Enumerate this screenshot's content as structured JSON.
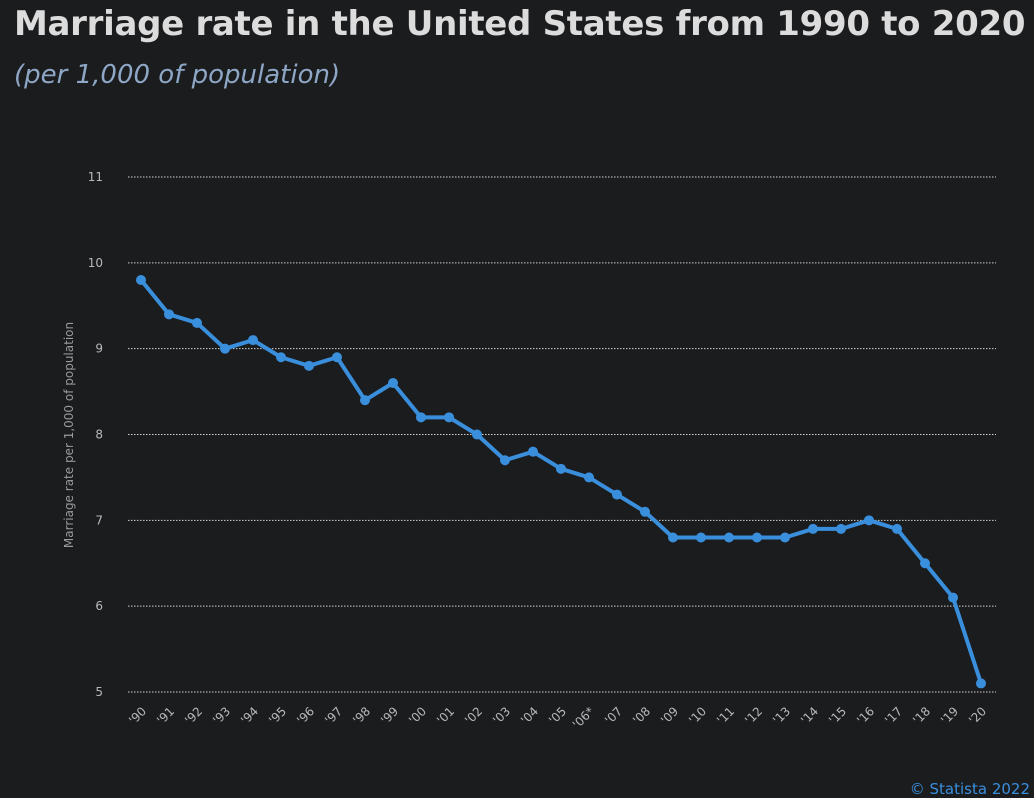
{
  "header": {
    "title": "Marriage rate in the United States from 1990 to 2020",
    "subtitle": "(per 1,000 of population)"
  },
  "credit": "© Statista 2022",
  "colors": {
    "line": "#3a8fdd",
    "grid": "#d0d0d0",
    "tick": "#b8b8b8"
  },
  "chart_data": {
    "type": "line",
    "title": "Marriage rate in the United States from 1990 to 2020",
    "subtitle": "(per 1,000 of population)",
    "xlabel": "",
    "ylabel": "Marriage rate per 1,000 of population",
    "ylim": [
      5,
      11
    ],
    "yticks": [
      5,
      6,
      7,
      8,
      9,
      10,
      11
    ],
    "grid": true,
    "categories": [
      "'90",
      "'91",
      "'92",
      "'93",
      "'94",
      "'95",
      "'96",
      "'97",
      "'98",
      "'99",
      "'00",
      "'01",
      "'02",
      "'03",
      "'04",
      "'05",
      "'06*",
      "'07",
      "'08",
      "'09",
      "'10",
      "'11",
      "'12",
      "'13",
      "'14",
      "'15",
      "'16",
      "'17",
      "'18",
      "'19",
      "'20"
    ],
    "series": [
      {
        "name": "Marriage rate",
        "values": [
          9.8,
          9.4,
          9.3,
          9.0,
          9.1,
          8.9,
          8.8,
          8.9,
          8.4,
          8.6,
          8.2,
          8.2,
          8.0,
          7.7,
          7.8,
          7.6,
          7.5,
          7.3,
          7.1,
          6.8,
          6.8,
          6.8,
          6.8,
          6.8,
          6.9,
          6.9,
          7.0,
          6.9,
          6.5,
          6.1,
          5.1
        ]
      }
    ]
  }
}
